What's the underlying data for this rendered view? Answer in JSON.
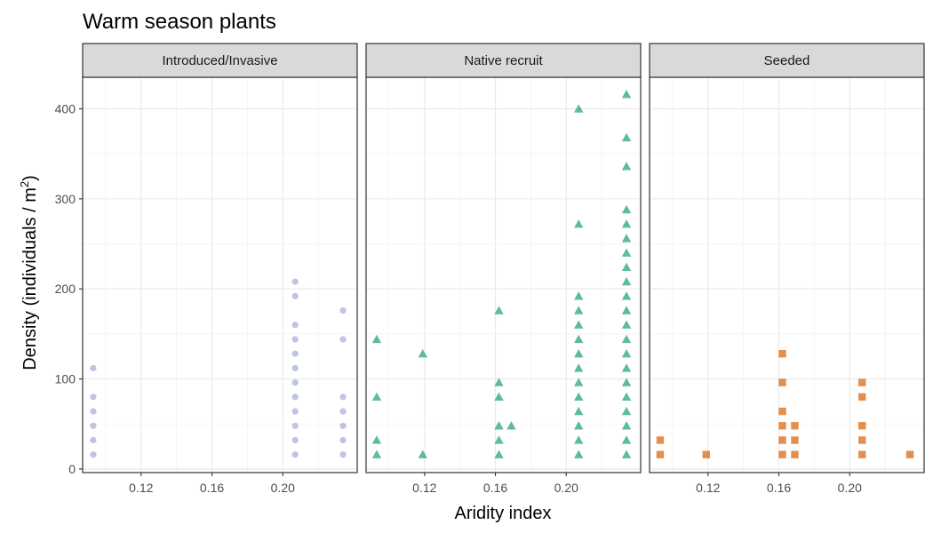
{
  "chart_data": {
    "type": "scatter",
    "title": "Warm season plants",
    "xlabel": "Aridity index",
    "ylabel": "Density (individuals / m",
    "ylabel_superscript": "2",
    "ylabel_suffix": ")",
    "xlim": [
      0.087,
      0.242
    ],
    "ylim": [
      -4,
      435
    ],
    "xticks": [
      0.12,
      0.16,
      0.2
    ],
    "xtick_labels": [
      "0.12",
      "0.16",
      "0.20"
    ],
    "yticks": [
      0,
      100,
      200,
      300,
      400
    ],
    "ytick_labels": [
      "0",
      "100",
      "200",
      "300",
      "400"
    ],
    "grid": true,
    "legend": "none",
    "panels": [
      {
        "name": "Introduced/Invasive",
        "marker": "circle",
        "color": "#8da0cb",
        "points": [
          [
            0.093,
            16
          ],
          [
            0.093,
            32
          ],
          [
            0.093,
            48
          ],
          [
            0.093,
            64
          ],
          [
            0.093,
            80
          ],
          [
            0.093,
            112
          ],
          [
            0.207,
            16
          ],
          [
            0.207,
            32
          ],
          [
            0.207,
            48
          ],
          [
            0.207,
            64
          ],
          [
            0.207,
            80
          ],
          [
            0.207,
            96
          ],
          [
            0.207,
            112
          ],
          [
            0.207,
            128
          ],
          [
            0.207,
            144
          ],
          [
            0.207,
            160
          ],
          [
            0.207,
            192
          ],
          [
            0.207,
            208
          ],
          [
            0.234,
            16
          ],
          [
            0.234,
            32
          ],
          [
            0.234,
            48
          ],
          [
            0.234,
            64
          ],
          [
            0.234,
            80
          ],
          [
            0.234,
            144
          ],
          [
            0.234,
            176
          ]
        ]
      },
      {
        "name": "Native recruit",
        "marker": "triangle",
        "color": "#1b9e77",
        "points": [
          [
            0.093,
            16
          ],
          [
            0.093,
            32
          ],
          [
            0.093,
            80
          ],
          [
            0.093,
            144
          ],
          [
            0.119,
            16
          ],
          [
            0.119,
            128
          ],
          [
            0.162,
            16
          ],
          [
            0.162,
            32
          ],
          [
            0.162,
            48
          ],
          [
            0.162,
            80
          ],
          [
            0.162,
            96
          ],
          [
            0.162,
            176
          ],
          [
            0.169,
            48
          ],
          [
            0.207,
            16
          ],
          [
            0.207,
            32
          ],
          [
            0.207,
            48
          ],
          [
            0.207,
            64
          ],
          [
            0.207,
            80
          ],
          [
            0.207,
            96
          ],
          [
            0.207,
            112
          ],
          [
            0.207,
            128
          ],
          [
            0.207,
            144
          ],
          [
            0.207,
            160
          ],
          [
            0.207,
            176
          ],
          [
            0.207,
            192
          ],
          [
            0.207,
            272
          ],
          [
            0.207,
            400
          ],
          [
            0.234,
            16
          ],
          [
            0.234,
            32
          ],
          [
            0.234,
            48
          ],
          [
            0.234,
            64
          ],
          [
            0.234,
            80
          ],
          [
            0.234,
            96
          ],
          [
            0.234,
            112
          ],
          [
            0.234,
            128
          ],
          [
            0.234,
            144
          ],
          [
            0.234,
            160
          ],
          [
            0.234,
            176
          ],
          [
            0.234,
            192
          ],
          [
            0.234,
            208
          ],
          [
            0.234,
            224
          ],
          [
            0.234,
            240
          ],
          [
            0.234,
            256
          ],
          [
            0.234,
            272
          ],
          [
            0.234,
            288
          ],
          [
            0.234,
            336
          ],
          [
            0.234,
            368
          ],
          [
            0.234,
            416
          ]
        ]
      },
      {
        "name": "Seeded",
        "marker": "square",
        "color": "#d95f02",
        "points": [
          [
            0.093,
            16
          ],
          [
            0.093,
            32
          ],
          [
            0.119,
            16
          ],
          [
            0.162,
            16
          ],
          [
            0.162,
            32
          ],
          [
            0.162,
            48
          ],
          [
            0.162,
            64
          ],
          [
            0.162,
            96
          ],
          [
            0.162,
            128
          ],
          [
            0.169,
            16
          ],
          [
            0.169,
            32
          ],
          [
            0.169,
            48
          ],
          [
            0.207,
            16
          ],
          [
            0.207,
            32
          ],
          [
            0.207,
            48
          ],
          [
            0.207,
            80
          ],
          [
            0.207,
            96
          ],
          [
            0.234,
            16
          ]
        ]
      }
    ]
  }
}
